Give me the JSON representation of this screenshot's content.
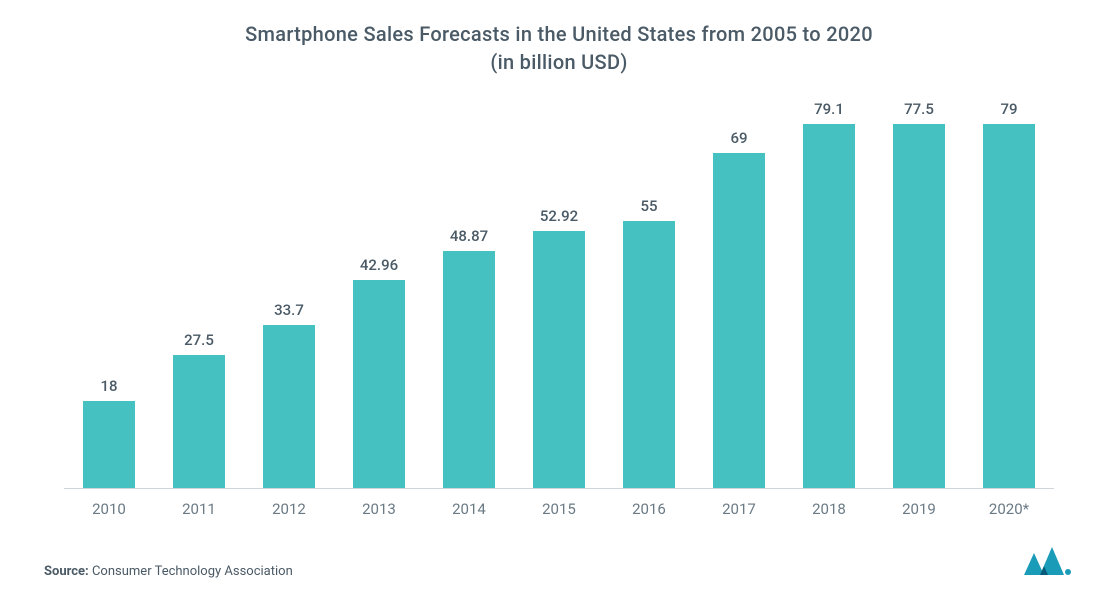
{
  "title": {
    "line1": "Smartphone Sales Forecasts in the United States from 2005 to 2020",
    "line2": "(in billion USD)",
    "color": "#4a5a66",
    "fontsize": 20
  },
  "chart": {
    "type": "bar",
    "bar_color": "#45c1c1",
    "value_label_color": "#4a5a66",
    "value_label_fontsize": 15,
    "x_label_color": "#6a7a85",
    "x_label_fontsize": 15,
    "axis_line_color": "#d0d5d9",
    "background_color": "#ffffff",
    "ylim": [
      0,
      80
    ],
    "bar_width_ratio": 0.58,
    "categories": [
      "2010",
      "2011",
      "2012",
      "2013",
      "2014",
      "2015",
      "2016",
      "2017",
      "2018",
      "2019",
      "2020*"
    ],
    "values": [
      18,
      27.5,
      33.7,
      42.96,
      48.87,
      52.92,
      55,
      69,
      79.1,
      77.5,
      79
    ],
    "value_labels": [
      "18",
      "27.5",
      "33.7",
      "42.96",
      "48.87",
      "52.92",
      "55",
      "69",
      "79.1",
      "77.5",
      "79"
    ]
  },
  "source": {
    "label": "Source:",
    "text": "Consumer Technology Association",
    "fontsize": 13,
    "color": "#4a5a66"
  },
  "logo": {
    "primary_color": "#1a9bb8",
    "accent_color": "#0a5a7a"
  }
}
